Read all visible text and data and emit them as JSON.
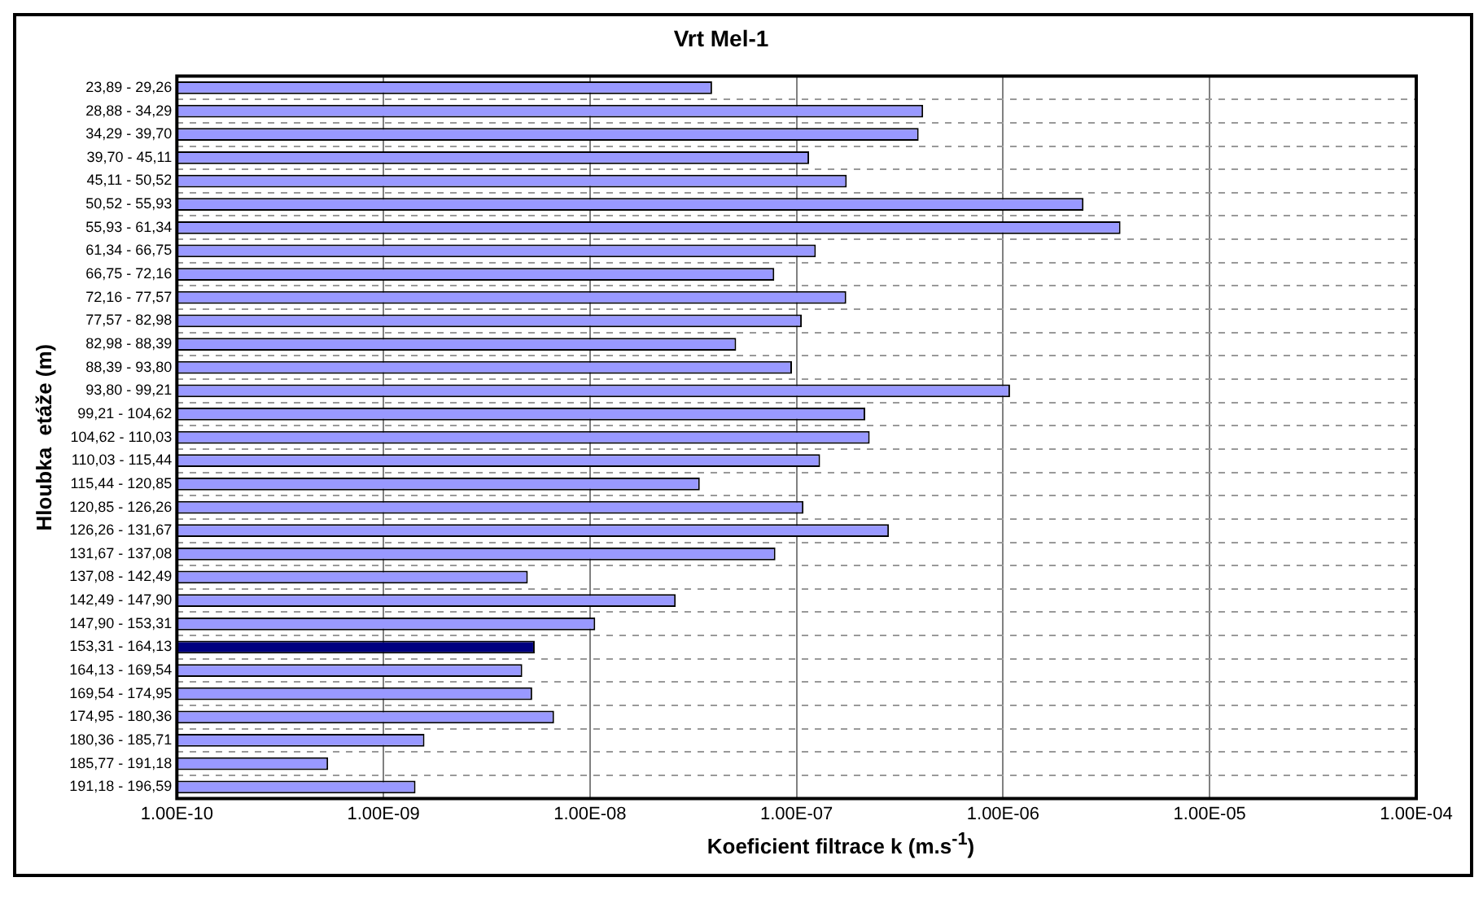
{
  "chart_data": {
    "type": "bar",
    "orientation": "horizontal",
    "title": "Vrt Mel-1",
    "xlabel": "Koeficient filtrace k (m.s$^{-1}$)",
    "ylabel": "Hloubka  etáže (m)",
    "categories": [
      "23,89 - 29,26",
      "28,88 - 34,29",
      "34,29 - 39,70",
      "39,70 - 45,11",
      "45,11 - 50,52",
      "50,52 - 55,93",
      "55,93 - 61,34",
      "61,34 - 66,75",
      "66,75 - 72,16",
      "72,16 - 77,57",
      "77,57 - 82,98",
      "82,98 - 88,39",
      "88,39 - 93,80",
      "93,80 - 99,21",
      "99,21 - 104,62",
      "104,62 - 110,03",
      "110,03 - 115,44",
      "115,44 - 120,85",
      "120,85 - 126,26",
      "126,26 - 131,67",
      "131,67 - 137,08",
      "137,08 - 142,49",
      "142,49 - 147,90",
      "147,90 - 153,31",
      "153,31 - 164,13",
      "164,13 - 169,54",
      "169,54 - 174,95",
      "174,95 - 180,36",
      "180,36 - 185,71",
      "185,77 - 191,18",
      "191,18 - 196,59"
    ],
    "values": [
      3.9e-08,
      4.1e-07,
      3.9e-07,
      1.15e-07,
      1.75e-07,
      2.45e-06,
      3.7e-06,
      1.24e-07,
      7.8e-08,
      1.74e-07,
      1.06e-07,
      5.1e-08,
      9.5e-08,
      1.08e-06,
      2.15e-07,
      2.26e-07,
      1.3e-07,
      3.4e-08,
      1.08e-07,
      2.8e-07,
      7.9e-08,
      5e-09,
      2.6e-08,
      1.06e-08,
      5.4e-09,
      4.7e-09,
      5.25e-09,
      6.7e-09,
      1.58e-09,
      5.4e-10,
      1.43e-09
    ],
    "colors": [
      "#9999ff",
      "#9999ff",
      "#9999ff",
      "#9999ff",
      "#9999ff",
      "#9999ff",
      "#9999ff",
      "#9999ff",
      "#9999ff",
      "#9999ff",
      "#9999ff",
      "#9999ff",
      "#9999ff",
      "#9999ff",
      "#9999ff",
      "#9999ff",
      "#9999ff",
      "#9999ff",
      "#9999ff",
      "#9999ff",
      "#9999ff",
      "#9999ff",
      "#9999ff",
      "#9999ff",
      "#000080",
      "#9999ff",
      "#9999ff",
      "#9999ff",
      "#9999ff",
      "#9999ff",
      "#9999ff"
    ],
    "log": "x",
    "xlim": [
      1e-10,
      0.0001
    ],
    "xticks": [
      {
        "value": 1e-10,
        "label": "1.00E-10"
      },
      {
        "value": 1e-09,
        "label": "1.00E-09"
      },
      {
        "value": 1e-08,
        "label": "1.00E-08"
      },
      {
        "value": 1e-07,
        "label": "1.00E-07"
      },
      {
        "value": 1e-06,
        "label": "1.00E-06"
      },
      {
        "value": 1e-05,
        "label": "1.00E-05"
      },
      {
        "value": 0.0001,
        "label": "1.00E-04"
      }
    ],
    "grid": true,
    "legend": false
  }
}
